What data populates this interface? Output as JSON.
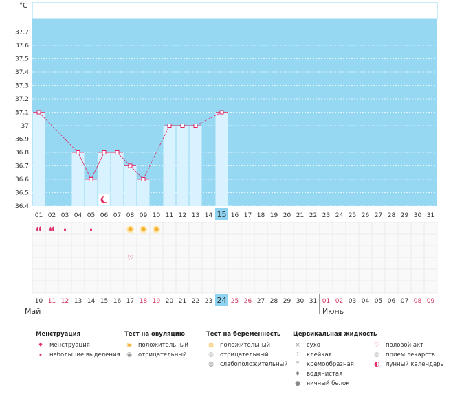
{
  "chart_data": {
    "type": "bar",
    "ylabel": "°C",
    "yticks": [
      "37.7",
      "37.6",
      "37.5",
      "37.4",
      "37.3",
      "37.2",
      "37.1",
      "37",
      "36.9",
      "36.8",
      "36.7",
      "36.6",
      "36.5",
      "36.4"
    ],
    "ylim": [
      36.4,
      37.8
    ],
    "days_top": [
      "01",
      "02",
      "03",
      "04",
      "05",
      "06",
      "07",
      "08",
      "09",
      "10",
      "11",
      "12",
      "13",
      "14",
      "15",
      "16",
      "17",
      "18",
      "19",
      "20",
      "21",
      "22",
      "23",
      "24",
      "25",
      "26",
      "27",
      "28",
      "29",
      "30",
      "31"
    ],
    "days_bottom": [
      "10",
      "11",
      "12",
      "13",
      "14",
      "15",
      "16",
      "17",
      "18",
      "19",
      "20",
      "21",
      "22",
      "23",
      "24",
      "25",
      "26",
      "27",
      "28",
      "29",
      "30",
      "31",
      "01",
      "02",
      "03",
      "04",
      "05",
      "06",
      "07",
      "08",
      "09"
    ],
    "bottom_red": [
      1,
      2,
      8,
      9,
      15,
      16,
      22,
      23,
      29,
      30
    ],
    "highlight_index": 14,
    "temperatures": [
      37.1,
      null,
      null,
      36.8,
      36.6,
      36.8,
      36.8,
      36.7,
      36.6,
      null,
      37.0,
      37.0,
      37.0,
      null,
      37.1,
      null,
      null,
      null,
      null,
      null,
      null,
      null,
      null,
      null,
      null,
      null,
      null,
      null,
      null,
      null,
      null
    ],
    "menstruation": [
      {
        "index": 0,
        "type": "heavy"
      },
      {
        "index": 1,
        "type": "heavy"
      },
      {
        "index": 2,
        "type": "light"
      },
      {
        "index": 4,
        "type": "light"
      }
    ],
    "ovulation_positive": [
      7,
      8,
      9
    ],
    "intercourse": [
      7
    ],
    "moon": [
      5
    ],
    "month_left": "Май",
    "month_right": "Июнь",
    "colors": {
      "plot_bg": "#96d8f2",
      "bar": "#d8f2ff",
      "line": "#e02060",
      "highlight": "#8fd3f2",
      "red_text": "#d0305a"
    }
  },
  "legend": {
    "menstruation": {
      "title": "Менструация",
      "items": [
        "менструация",
        "небольшие выделения"
      ]
    },
    "ovulation": {
      "title": "Тест на овуляцию",
      "items": [
        "положительный",
        "отрицательный"
      ]
    },
    "pregnancy": {
      "title": "Тест на беременность",
      "items": [
        "положительный",
        "отрицательный",
        "слабоположительный"
      ]
    },
    "cervical": {
      "title": "Цервикальная жидкость",
      "items": [
        "сухо",
        "клейкая",
        "кремообразная",
        "водянистая",
        "яичный белок"
      ]
    },
    "other": {
      "items": [
        "половой акт",
        "прием лекарств",
        "лунный календарь"
      ]
    }
  }
}
